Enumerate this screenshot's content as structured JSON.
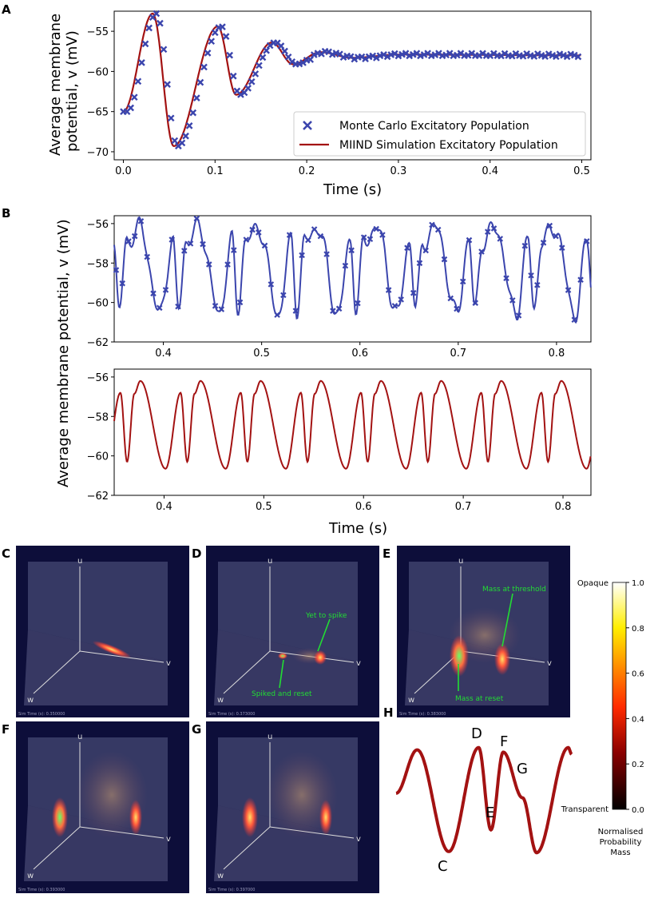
{
  "panel_letters": {
    "A": "A",
    "B": "B",
    "C": "C",
    "D": "D",
    "E": "E",
    "F": "F",
    "G": "G",
    "H": "H"
  },
  "colors": {
    "blue": "#3b45ad",
    "red": "#a31212",
    "dark": "#0d0e3a",
    "green": "#22dd33"
  },
  "chart_data": [
    {
      "id": "A",
      "type": "line",
      "xlabel": "Time (s)",
      "ylabel_line1": "Average membrane",
      "ylabel_line2": "potential, v (mV)",
      "xlim": [
        -0.01,
        0.51
      ],
      "ylim": [
        -71,
        -52.5
      ],
      "xticks": [
        0.0,
        0.1,
        0.2,
        0.3,
        0.4,
        0.5
      ],
      "xtick_labels": [
        "0.0",
        "0.1",
        "0.2",
        "0.3",
        "0.4",
        "0.5"
      ],
      "yticks": [
        -55,
        -60,
        -65,
        -70
      ],
      "ytick_labels": [
        "−55",
        "−60",
        "−65",
        "−70"
      ],
      "model": {
        "t0": 0.0,
        "t1": 0.5,
        "steady": -58.0,
        "start": -65.0,
        "period": 0.067,
        "decay": 0.045,
        "phase": 0.01
      },
      "series": [
        {
          "name": "Monte Carlo Excitatory Population",
          "marker": "x",
          "color": "#3b45ad",
          "dt": 0.004,
          "t_shift": 0.004
        },
        {
          "name": "MIIND Simulation Excitatory Population",
          "marker": "line",
          "color": "#a31212",
          "t_shift": 0.0
        }
      ]
    },
    {
      "id": "B-top",
      "type": "line",
      "ylim": [
        -62,
        -55.6
      ],
      "xlim": [
        0.35,
        0.835
      ],
      "xticks": [
        0.4,
        0.5,
        0.6,
        0.7,
        0.8
      ],
      "xtick_labels": [
        "0.4",
        "0.5",
        "0.6",
        "0.7",
        "0.8"
      ],
      "yticks": [
        -56,
        -58,
        -60,
        -62
      ],
      "ytick_labels": [
        "−56",
        "−58",
        "−60",
        "−62"
      ],
      "series": [
        {
          "name": "Monte Carlo",
          "color": "#3b45ad",
          "marker": "x",
          "dt": 0.0063
        }
      ]
    },
    {
      "id": "B-bottom",
      "type": "line",
      "xlabel": "Time (s)",
      "ylim": [
        -62,
        -55.6
      ],
      "xlim": [
        0.35,
        0.828
      ],
      "xticks": [
        0.4,
        0.5,
        0.6,
        0.7,
        0.8
      ],
      "xtick_labels": [
        "0.4",
        "0.5",
        "0.6",
        "0.7",
        "0.8"
      ],
      "yticks": [
        -56,
        -58,
        -60,
        -62
      ],
      "ytick_labels": [
        "−56",
        "−58",
        "−60",
        "−62"
      ],
      "series": [
        {
          "name": "MIIND",
          "color": "#a31212",
          "marker": "line"
        }
      ]
    }
  ],
  "panel_B_ylabel": "Average membrane potential, v (mV)",
  "sim_panels": {
    "axis_u": "u",
    "axis_v": "v",
    "axis_w": "w",
    "sim_time": [
      "Sim Time (s): 0.350000",
      "Sim Time (s): 0.373000",
      "Sim Time (s): 0.383000",
      "Sim Time (s): 0.393000",
      "Sim Time (s): 0.397000"
    ],
    "D_annot_top": "Yet to spike",
    "D_annot_bottom": "Spiked and reset",
    "E_annot_top": "Mass at threshold",
    "E_annot_bottom": "Mass at reset"
  },
  "panel_H_labels": [
    "C",
    "D",
    "E",
    "F",
    "G"
  ],
  "colorbar": {
    "top_label": "Opaque",
    "bottom_label": "Transparent",
    "ticks": [
      "1.0",
      "0.8",
      "0.6",
      "0.4",
      "0.2",
      "0.0"
    ],
    "title_line1": "Normalised",
    "title_line2": "Probability",
    "title_line3": "Mass"
  }
}
